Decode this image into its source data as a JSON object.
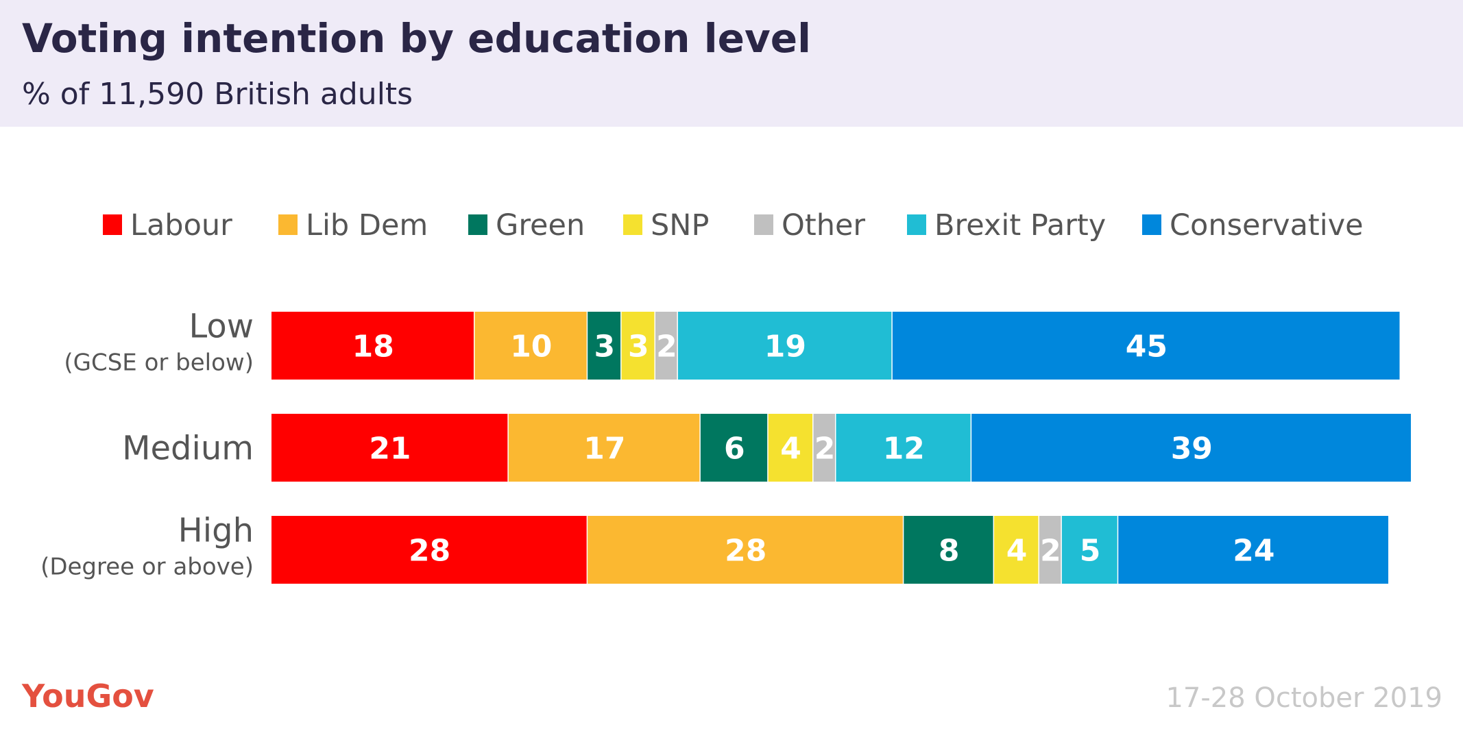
{
  "chart_data": {
    "type": "stacked-bar",
    "title": "Voting intention by education level",
    "subtitle": "% of 11,590 British adults",
    "categories": [
      [
        "Low",
        "(GCSE or below)"
      ],
      [
        "Medium"
      ],
      [
        "High",
        "(Degree or above)"
      ]
    ],
    "series": [
      {
        "name": "Labour",
        "color": "#ff0000",
        "values": [
          18,
          21,
          28
        ]
      },
      {
        "name": "Lib Dem",
        "color": "#fbb831",
        "values": [
          10,
          17,
          28
        ]
      },
      {
        "name": "Green",
        "color": "#00775f",
        "values": [
          3,
          6,
          8
        ]
      },
      {
        "name": "SNP",
        "color": "#f5e12f",
        "values": [
          3,
          4,
          4
        ]
      },
      {
        "name": "Other",
        "color": "#c0c0c0",
        "values": [
          2,
          2,
          2
        ]
      },
      {
        "name": "Brexit Party",
        "color": "#20bdd4",
        "values": [
          19,
          12,
          5
        ]
      },
      {
        "name": "Conservative",
        "color": "#0087dc",
        "values": [
          45,
          39,
          24
        ]
      }
    ],
    "xlim": [
      0,
      100
    ],
    "source": "YouGov",
    "date": "17-28 October 2019"
  }
}
